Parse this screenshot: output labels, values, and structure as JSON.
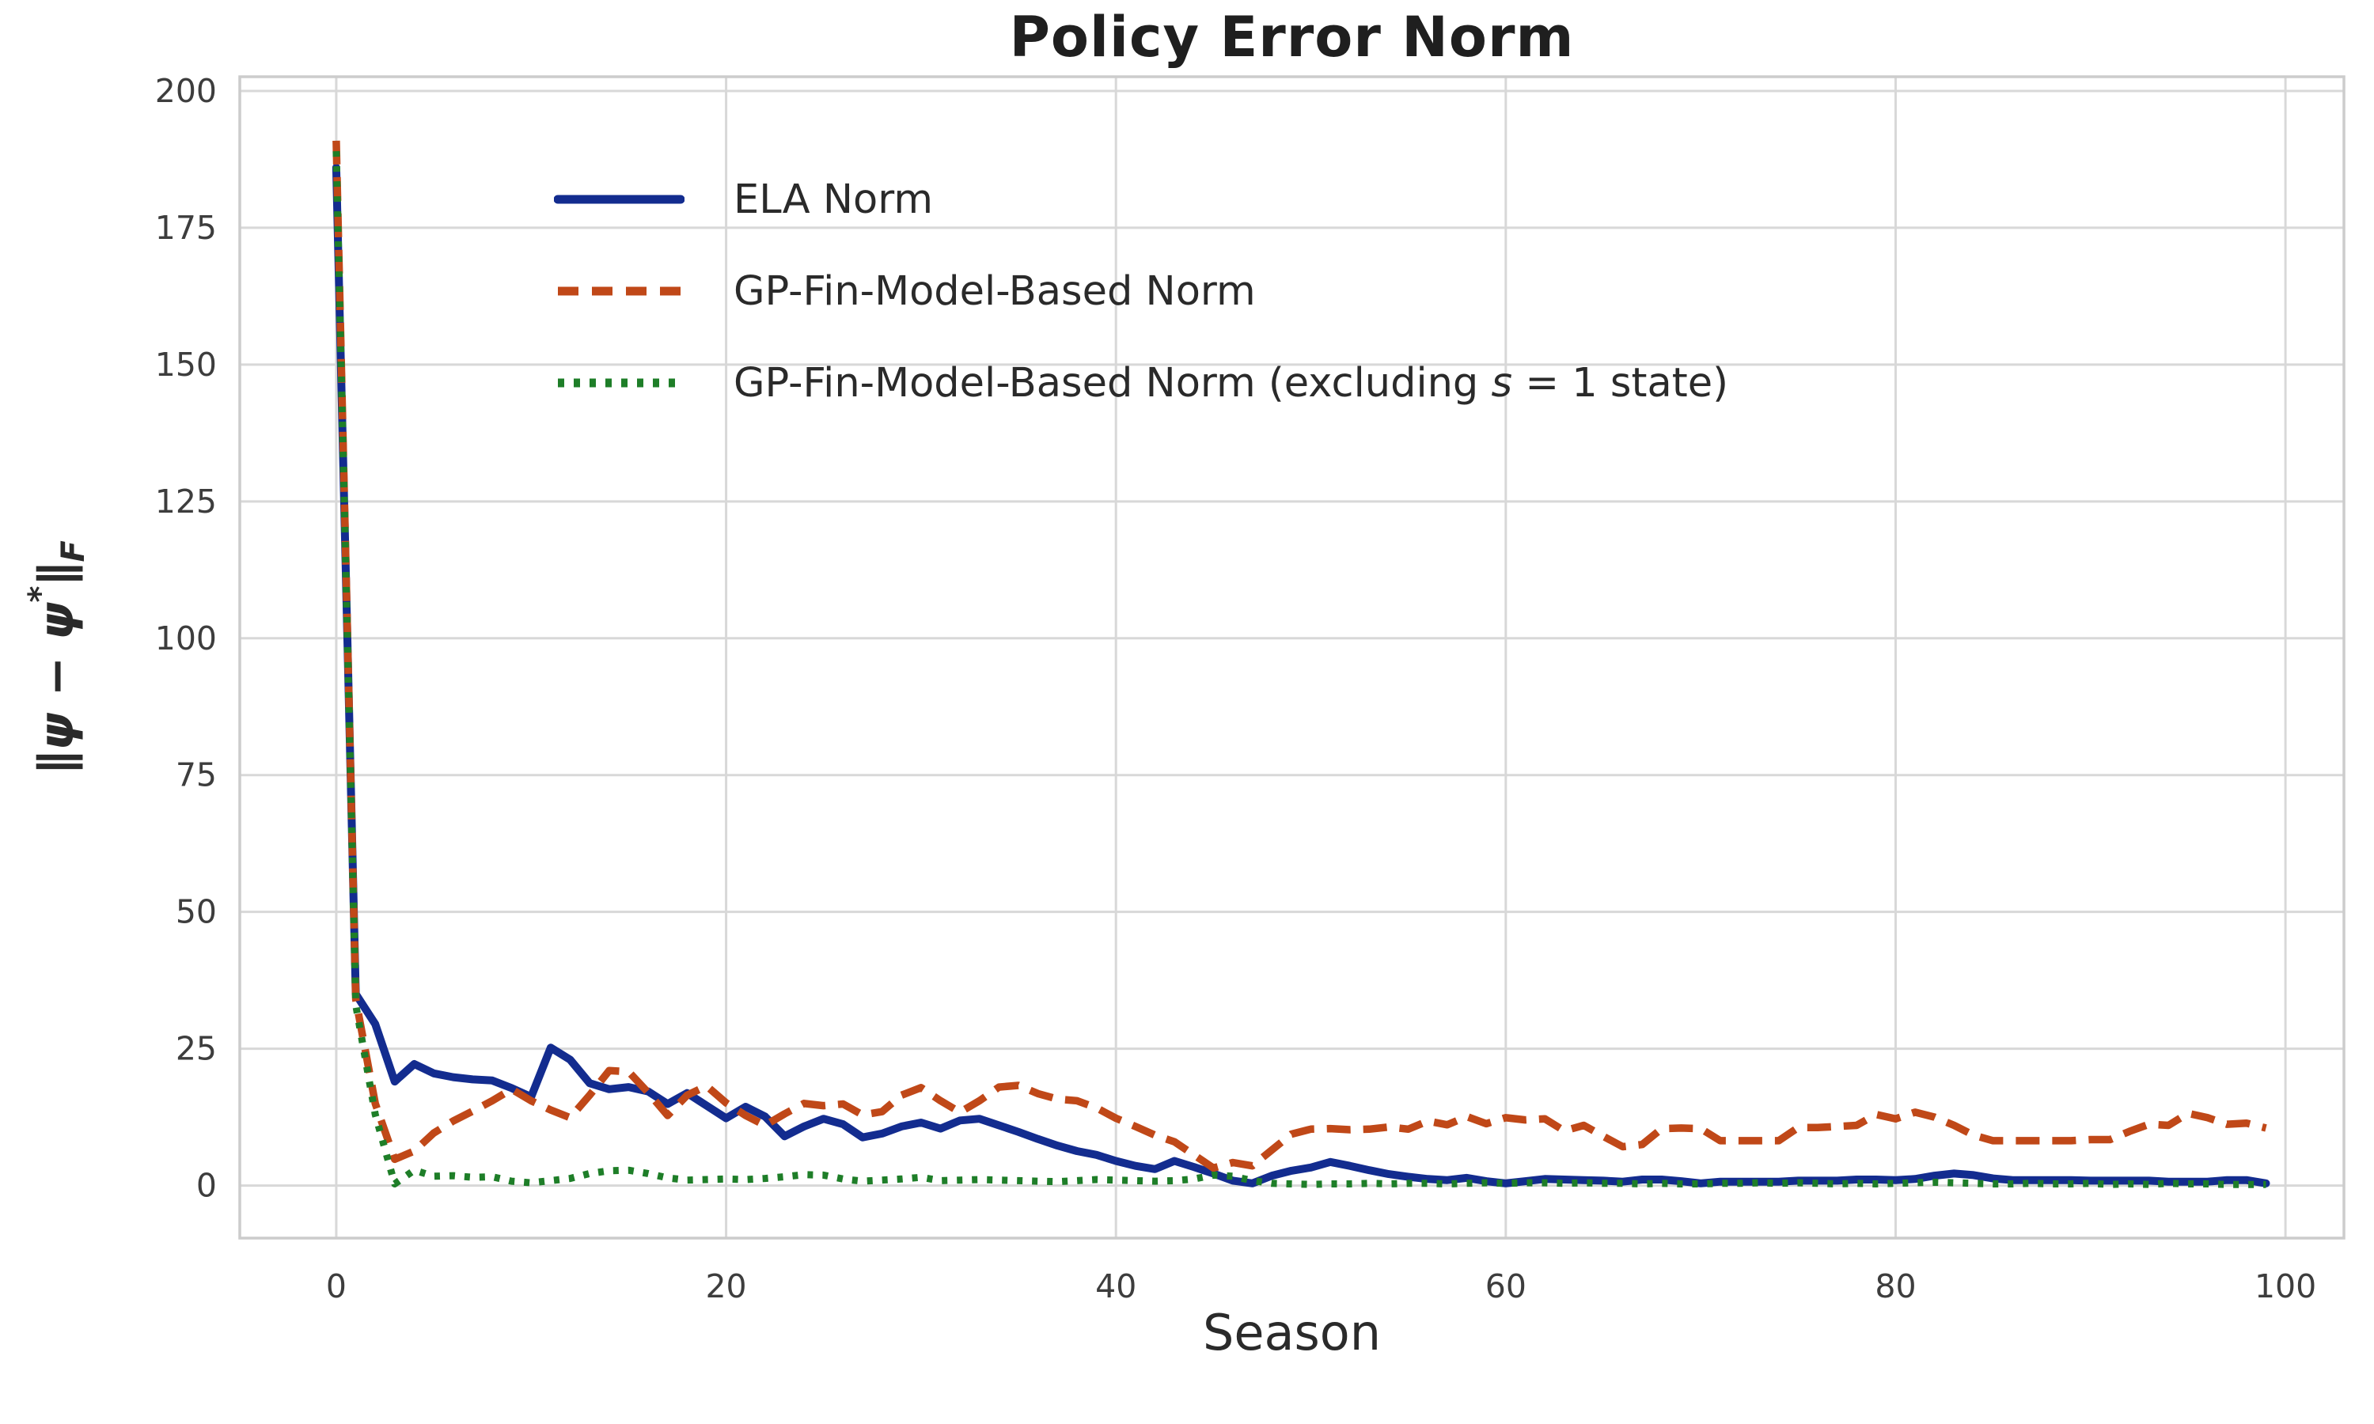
{
  "title": "Policy Error Norm",
  "axes": {
    "xlabel": "Season",
    "ylabel_parts": {
      "open": "∥",
      "psi1": "ψ",
      "minus": " − ",
      "psi2": "ψ",
      "star": "*",
      "close": "∥",
      "sub": "F"
    },
    "x_tick_labels": [
      "0",
      "20",
      "40",
      "60",
      "80",
      "100"
    ],
    "y_tick_labels": [
      "0",
      "25",
      "50",
      "75",
      "100",
      "125",
      "150",
      "175",
      "200"
    ]
  },
  "legend": {
    "items": [
      {
        "label": "ELA Norm"
      },
      {
        "label": "GP-Fin-Model-Based Norm"
      },
      {
        "label_prefix": "GP-Fin-Model-Based Norm (excluding ",
        "label_italic": "s",
        "label_suffix": " = 1 state)"
      }
    ]
  },
  "colors": {
    "background": "#ffffff",
    "grid": "#d8d8d8",
    "spine": "#cccccc",
    "title_text": "#1f1f1f",
    "tick_text": "#3d3d3d",
    "ela": "#132c8f",
    "gp_fin": "#c04818",
    "gp_fin_excl": "#1e7e28"
  },
  "chart_data": {
    "type": "line",
    "title": "Policy Error Norm",
    "xlabel": "Season",
    "ylabel": "‖ψ − ψ*‖_F",
    "x_start": 0,
    "x_step": 1,
    "n_points": 100,
    "xlim": [
      -4.95,
      103.0
    ],
    "ylim": [
      -9.6,
      202.6
    ],
    "xticks": [
      0,
      20,
      40,
      60,
      80,
      100
    ],
    "yticks": [
      0,
      25,
      50,
      75,
      100,
      125,
      150,
      175,
      200
    ],
    "grid": true,
    "legend_position": "upper left",
    "series": [
      {
        "name": "ELA Norm",
        "color": "#132c8f",
        "style": "solid",
        "width": 10,
        "values": [
          186,
          35,
          29.5,
          19.0,
          22.2,
          20.5,
          19.8,
          19.4,
          19.2,
          17.8,
          16.2,
          25.2,
          23.0,
          18.7,
          17.6,
          18.0,
          17.2,
          14.9,
          16.9,
          14.6,
          12.3,
          14.4,
          12.6,
          9.0,
          10.8,
          12.2,
          11.2,
          8.8,
          9.5,
          10.8,
          11.5,
          10.4,
          11.9,
          12.2,
          11.0,
          9.8,
          8.5,
          7.3,
          6.3,
          5.6,
          4.5,
          3.6,
          3.0,
          4.5,
          3.4,
          2.2,
          0.9,
          0.4,
          1.8,
          2.7,
          3.3,
          4.3,
          3.6,
          2.8,
          2.1,
          1.6,
          1.2,
          1.0,
          1.4,
          0.8,
          0.4,
          0.8,
          1.2,
          1.1,
          1.0,
          0.9,
          0.7,
          1.1,
          1.1,
          0.8,
          0.4,
          0.7,
          0.7,
          0.7,
          0.7,
          0.9,
          0.9,
          0.9,
          1.1,
          1.1,
          1.0,
          1.2,
          1.8,
          2.2,
          1.9,
          1.3,
          1.0,
          1.0,
          1.0,
          1.0,
          0.9,
          0.9,
          0.9,
          0.9,
          0.7,
          0.7,
          0.7,
          1.0,
          1.0,
          0.4
        ]
      },
      {
        "name": "GP-Fin-Model-Based Norm",
        "color": "#c04818",
        "style": "dashed",
        "width": 9.5,
        "values": [
          190.9,
          34,
          15.0,
          4.8,
          6.3,
          9.6,
          11.8,
          13.6,
          15.5,
          17.6,
          15.5,
          13.8,
          12.4,
          16.5,
          21.0,
          20.8,
          17.0,
          12.8,
          16.5,
          18.2,
          15.1,
          12.8,
          11.0,
          13.1,
          15.0,
          14.6,
          14.9,
          12.9,
          13.5,
          16.5,
          17.9,
          15.5,
          13.4,
          15.5,
          18.0,
          18.3,
          16.8,
          15.8,
          15.5,
          14.2,
          12.3,
          10.8,
          9.2,
          8.0,
          5.6,
          3.2,
          4.2,
          3.6,
          6.5,
          9.4,
          10.3,
          10.4,
          10.2,
          10.3,
          10.7,
          10.3,
          11.8,
          11.1,
          12.6,
          11.3,
          12.4,
          12.0,
          12.2,
          10.0,
          11.0,
          9.0,
          7.1,
          7.5,
          10.4,
          10.5,
          10.4,
          8.2,
          8.2,
          8.2,
          8.2,
          10.6,
          10.6,
          10.8,
          11.0,
          13.0,
          12.2,
          13.4,
          12.5,
          11.0,
          9.2,
          8.2,
          8.2,
          8.2,
          8.2,
          8.2,
          8.4,
          8.4,
          9.9,
          11.2,
          11.0,
          13.2,
          12.4,
          11.2,
          11.4,
          10.5
        ]
      },
      {
        "name": "GP-Fin-Model-Based Norm (excluding s = 1 state)",
        "color": "#1e7e28",
        "style": "dotted",
        "width": 9,
        "values": [
          189,
          33,
          13.0,
          0.3,
          2.8,
          1.7,
          1.8,
          1.5,
          1.6,
          0.8,
          0.5,
          0.9,
          1.3,
          2.2,
          2.7,
          2.8,
          2.2,
          1.4,
          1.0,
          1.1,
          1.2,
          1.1,
          1.3,
          1.6,
          2.0,
          1.9,
          1.2,
          0.8,
          1.0,
          1.2,
          1.5,
          0.9,
          1.0,
          1.1,
          1.0,
          0.9,
          0.8,
          0.7,
          0.9,
          1.1,
          1.0,
          0.9,
          0.8,
          0.9,
          1.2,
          1.9,
          1.7,
          0.9,
          0.4,
          0.3,
          0.2,
          0.3,
          0.3,
          0.4,
          0.3,
          0.4,
          0.4,
          0.3,
          0.4,
          0.5,
          0.4,
          0.5,
          0.5,
          0.4,
          0.5,
          0.4,
          0.4,
          0.3,
          0.4,
          0.3,
          0.3,
          0.4,
          0.4,
          0.5,
          0.4,
          0.5,
          0.4,
          0.3,
          0.4,
          0.3,
          0.4,
          0.5,
          0.6,
          0.5,
          0.4,
          0.3,
          0.3,
          0.4,
          0.3,
          0.3,
          0.4,
          0.2,
          0.3,
          0.2,
          0.4,
          0.3,
          0.3,
          0.2,
          0.2,
          0.2
        ]
      }
    ]
  }
}
